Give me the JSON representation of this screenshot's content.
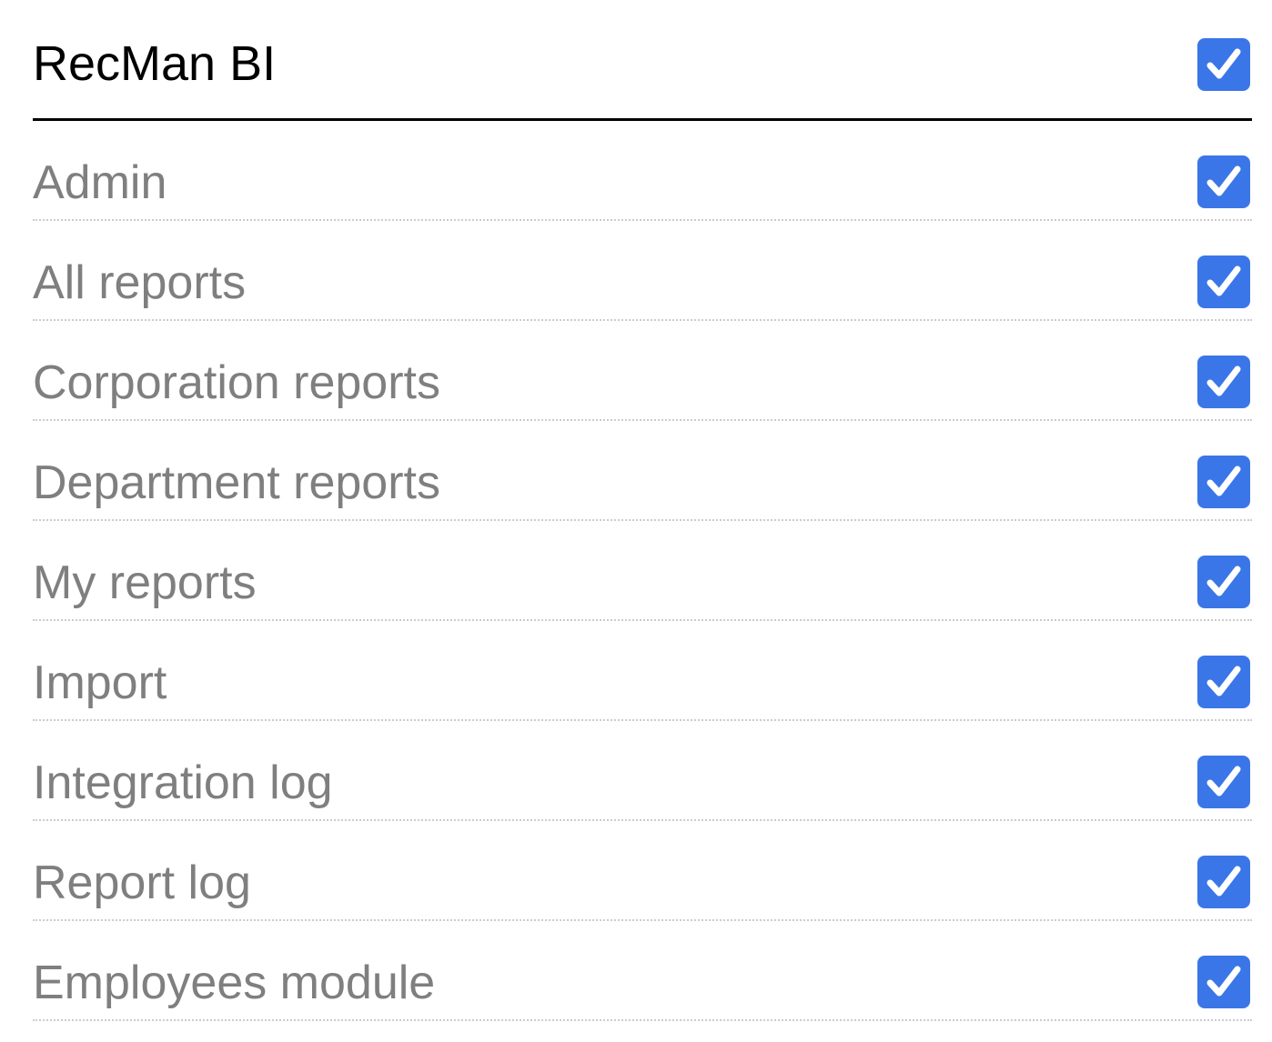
{
  "header": {
    "title": "RecMan BI",
    "checked": true
  },
  "items": [
    {
      "label": "Admin",
      "checked": true
    },
    {
      "label": "All reports",
      "checked": true
    },
    {
      "label": "Corporation reports",
      "checked": true
    },
    {
      "label": "Department reports",
      "checked": true
    },
    {
      "label": "My reports",
      "checked": true
    },
    {
      "label": "Import",
      "checked": true
    },
    {
      "label": "Integration log",
      "checked": true
    },
    {
      "label": "Report log",
      "checked": true
    },
    {
      "label": "Employees module",
      "checked": true
    }
  ]
}
